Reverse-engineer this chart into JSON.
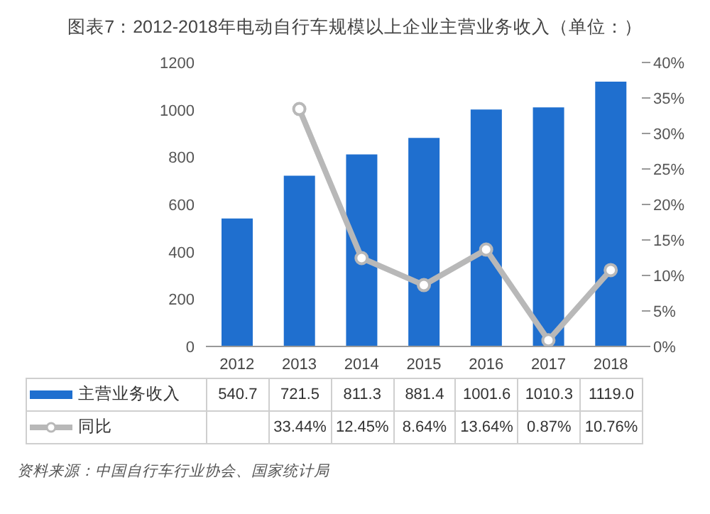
{
  "chart_data": {
    "type": "bar",
    "title": "图表7：2012-2018年电动自行车规模以上企业主营业务收入（单位：）",
    "categories": [
      "2012",
      "2013",
      "2014",
      "2015",
      "2016",
      "2017",
      "2018"
    ],
    "series": [
      {
        "name": "主营业务收入",
        "color": "#1f6fcf",
        "values": [
          540.7,
          721.5,
          811.3,
          881.4,
          1001.6,
          1010.3,
          1119.0
        ],
        "value_labels": [
          "540.7",
          "721.5",
          "811.3",
          "881.4",
          "1001.6",
          "1010.3",
          "1119.0"
        ]
      },
      {
        "name": "同比",
        "type": "line",
        "axis": "y2",
        "color": "#b8b8b8",
        "values": [
          null,
          33.44,
          12.45,
          8.64,
          13.64,
          0.87,
          10.76
        ],
        "value_labels": [
          null,
          "33.44%",
          "12.45%",
          "8.64%",
          "13.64%",
          "0.87%",
          "10.76%"
        ]
      }
    ],
    "ylim": [
      0,
      1200
    ],
    "yticks": [
      0,
      200,
      400,
      600,
      800,
      1000,
      1200
    ],
    "y2lim": [
      0,
      40
    ],
    "y2ticks": [
      {
        "value": 0,
        "label": "0%"
      },
      {
        "value": 5,
        "label": "5%"
      },
      {
        "value": 10,
        "label": "10%"
      },
      {
        "value": 15,
        "label": "15%"
      },
      {
        "value": 20,
        "label": "20%"
      },
      {
        "value": 25,
        "label": "25%"
      },
      {
        "value": 30,
        "label": "30%"
      },
      {
        "value": 35,
        "label": "35%"
      },
      {
        "value": 40,
        "label": "40%"
      }
    ],
    "marker": "circle",
    "legend": "bottom",
    "grid": false,
    "annotations": [
      "资料来源：中国自行车行业协会、国家统计局"
    ]
  }
}
